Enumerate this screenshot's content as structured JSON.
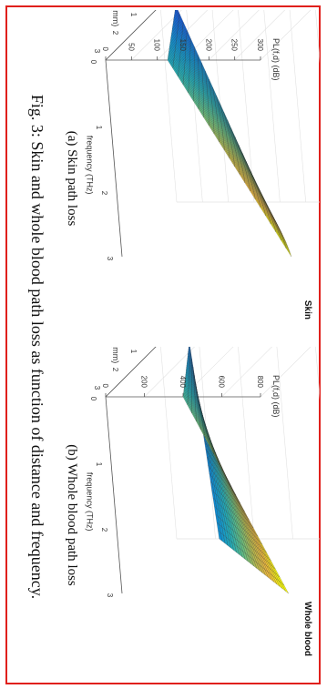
{
  "page": {
    "border_color": "#e0201c"
  },
  "figure": {
    "caption": "Fig. 3: Skin and whole blood path loss as function of distance and frequency."
  },
  "chart_data": [
    {
      "type": "surface",
      "title": "Skin",
      "subcaption": "(a) Skin path loss",
      "zlabel": "PL(f,d) (dB)",
      "xlabel": "distance(mm)",
      "ylabel": "frequency (THz)",
      "x_ticks": [
        "3",
        "2",
        "1",
        "0"
      ],
      "y_ticks": [
        "0",
        "1",
        "2",
        "3"
      ],
      "z_ticks": [
        "0",
        "50",
        "100",
        "150",
        "200",
        "250",
        "300"
      ],
      "xlim": [
        0,
        3
      ],
      "ylim": [
        0,
        3
      ],
      "zlim": [
        0,
        300
      ],
      "colormap": "parula",
      "corner_values": {
        "d0_f0": 30,
        "d3_f0": 120,
        "d0_f3": 170,
        "d3_f3": 310
      }
    },
    {
      "type": "surface",
      "title": "Whole blood",
      "subcaption": "(b) Whole blood path loss",
      "zlabel": "PL(f,d) (dB)",
      "xlabel": "distance(mm)",
      "ylabel": "frequency (THz)",
      "x_ticks": [
        "3",
        "2",
        "1",
        "0"
      ],
      "y_ticks": [
        "0",
        "1",
        "2",
        "3"
      ],
      "z_ticks": [
        "0",
        "200",
        "400",
        "600",
        "800"
      ],
      "xlim": [
        0,
        3
      ],
      "ylim": [
        0,
        3
      ],
      "zlim": [
        0,
        800
      ],
      "colormap": "parula",
      "corner_values": {
        "d0_f0": 150,
        "d3_f0": 400,
        "d0_f3": 220,
        "d3_f3": 860
      }
    }
  ]
}
